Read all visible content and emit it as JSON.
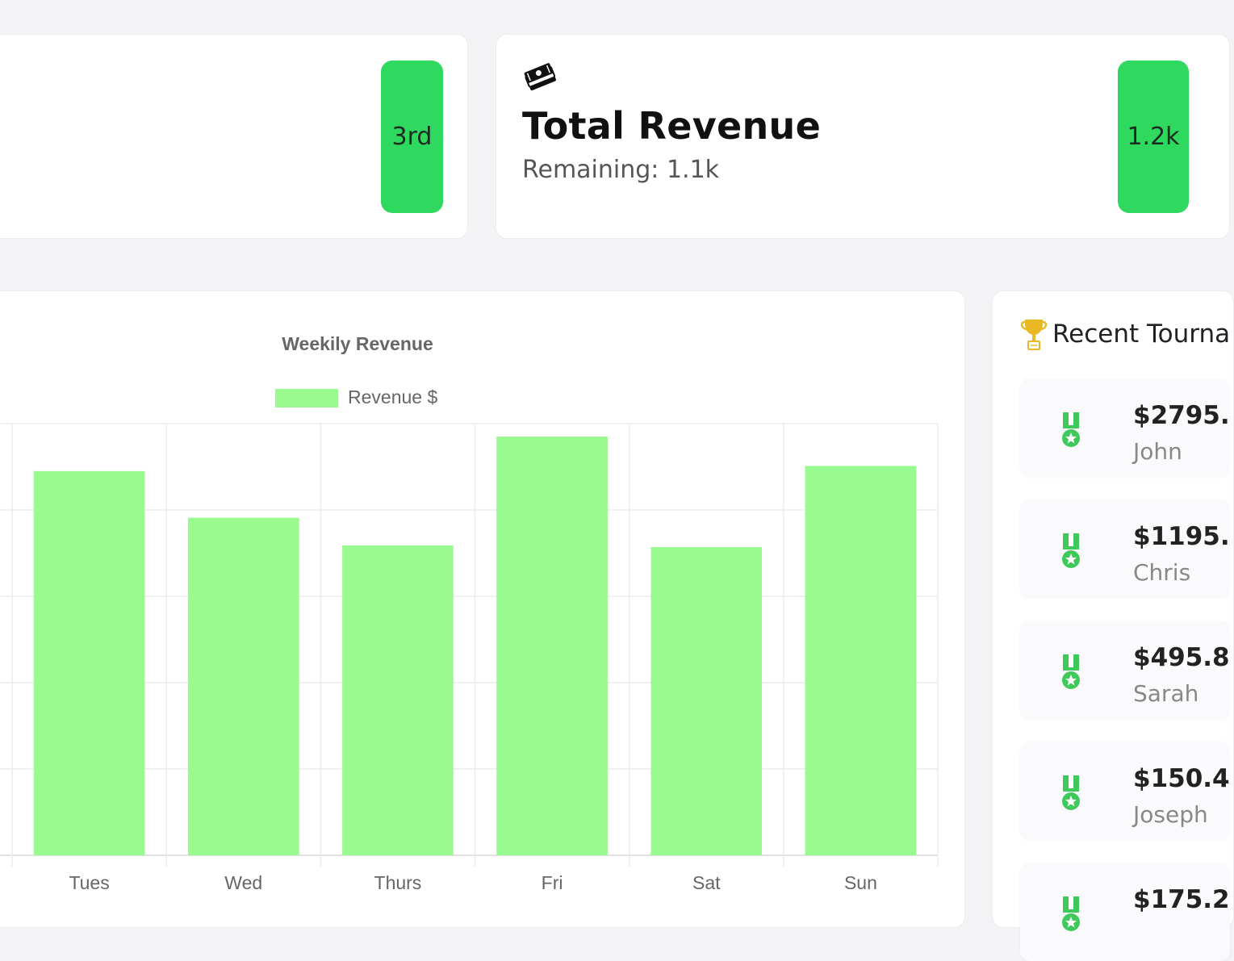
{
  "rank_card": {
    "value": "3rd"
  },
  "revenue_card": {
    "icon": "money-icon",
    "title": "Total Revenue",
    "subtitle": "Remaining: 1.1k",
    "value": "1.2k"
  },
  "colors": {
    "accent": "#2fd95f",
    "bar": "#99fb8f",
    "medal": "#3fc95a",
    "trophy": "#e9b825"
  },
  "chart_data": {
    "type": "bar",
    "title": "Weekily Revenue",
    "categories": [
      "Tues",
      "Wed",
      "Thurs",
      "Fri",
      "Sat",
      "Sun"
    ],
    "series": [
      {
        "name": "Revenue $",
        "values": [
          445,
          391,
          359,
          485,
          357,
          451
        ]
      }
    ],
    "ylim": [
      0,
      500
    ],
    "grid": true,
    "legend": "top"
  },
  "tournaments": {
    "title": "Recent Tourna",
    "icon": "trophy-icon",
    "items": [
      {
        "amount": "$2795.",
        "name": "John"
      },
      {
        "amount": "$1195.",
        "name": "Chris"
      },
      {
        "amount": "$495.8",
        "name": "Sarah"
      },
      {
        "amount": "$150.4",
        "name": "Joseph"
      },
      {
        "amount": "$175.2",
        "name": ""
      }
    ]
  }
}
